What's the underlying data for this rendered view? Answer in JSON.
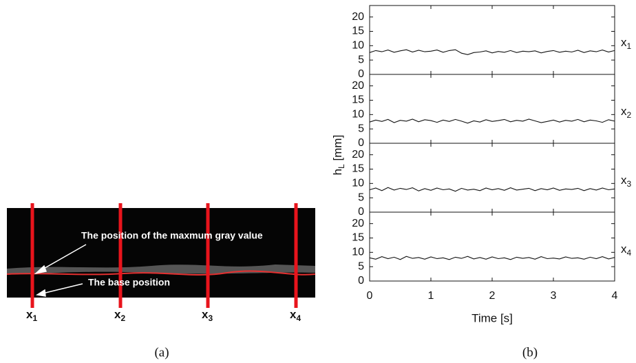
{
  "figure_a": {
    "annotations": [
      "The position of the maxmum gray value",
      "The base position"
    ],
    "line_labels": [
      {
        "text": "x",
        "subscript": "1"
      },
      {
        "text": "x",
        "subscript": "2"
      },
      {
        "text": "x",
        "subscript": "3"
      },
      {
        "text": "x",
        "subscript": "4"
      }
    ],
    "caption": "(a)"
  },
  "figure_b": {
    "caption": "(b)",
    "y_label": {
      "text": "h",
      "subscript": "L",
      "rest": " [mm]"
    },
    "x_label": "Time [s]"
  },
  "chart_data": [
    {
      "type": "line",
      "panel_label": {
        "text": "x",
        "subscript": "1"
      },
      "x": [
        0,
        0.1,
        0.2,
        0.3,
        0.4,
        0.5,
        0.6,
        0.7,
        0.8,
        0.9,
        1,
        1.1,
        1.2,
        1.3,
        1.4,
        1.5,
        1.6,
        1.7,
        1.8,
        1.9,
        2,
        2.1,
        2.2,
        2.3,
        2.4,
        2.5,
        2.6,
        2.7,
        2.8,
        2.9,
        3,
        3.1,
        3.2,
        3.3,
        3.4,
        3.5,
        3.6,
        3.7,
        3.8,
        3.9,
        4
      ],
      "series": [
        {
          "color": "#111111",
          "values": [
            7.6,
            8.3,
            7.9,
            8.5,
            7.7,
            8.2,
            8.6,
            7.8,
            8.4,
            7.9,
            8.1,
            8.5,
            7.7,
            8.3,
            8.6,
            7.4,
            6.9,
            7.6,
            7.8,
            8.2,
            7.5,
            8.0,
            7.7,
            8.3,
            7.6,
            8.1,
            7.9,
            8.2,
            7.5,
            8.0,
            8.3,
            7.7,
            8.1,
            7.8,
            8.4,
            7.6,
            8.2,
            7.9,
            8.5,
            7.8,
            8.3
          ]
        }
      ],
      "xlim": [
        0,
        4
      ],
      "xticks": [
        0,
        1,
        2,
        3,
        4
      ],
      "ylim": [
        0,
        24
      ],
      "yticks": [
        0,
        5,
        10,
        15,
        20
      ]
    },
    {
      "type": "line",
      "panel_label": {
        "text": "x",
        "subscript": "2"
      },
      "x": [
        0,
        0.1,
        0.2,
        0.3,
        0.4,
        0.5,
        0.6,
        0.7,
        0.8,
        0.9,
        1,
        1.1,
        1.2,
        1.3,
        1.4,
        1.5,
        1.6,
        1.7,
        1.8,
        1.9,
        2,
        2.1,
        2.2,
        2.3,
        2.4,
        2.5,
        2.6,
        2.7,
        2.8,
        2.9,
        3,
        3.1,
        3.2,
        3.3,
        3.4,
        3.5,
        3.6,
        3.7,
        3.8,
        3.9,
        4
      ],
      "series": [
        {
          "color": "#111111",
          "values": [
            7.4,
            8.1,
            7.6,
            8.3,
            7.2,
            8.0,
            7.7,
            8.4,
            7.5,
            8.2,
            7.9,
            7.3,
            8.1,
            7.6,
            8.3,
            7.7,
            7.0,
            7.8,
            7.4,
            8.2,
            7.6,
            7.9,
            8.3,
            7.5,
            8.0,
            7.7,
            8.4,
            7.8,
            7.2,
            7.6,
            8.1,
            7.4,
            8.0,
            7.7,
            8.3,
            7.5,
            8.1,
            7.8,
            7.3,
            8.2,
            7.7
          ]
        }
      ],
      "xlim": [
        0,
        4
      ],
      "xticks": [
        0,
        1,
        2,
        3,
        4
      ],
      "ylim": [
        0,
        24
      ],
      "yticks": [
        0,
        5,
        10,
        15,
        20
      ]
    },
    {
      "type": "line",
      "panel_label": {
        "text": "x",
        "subscript": "3"
      },
      "x": [
        0,
        0.1,
        0.2,
        0.3,
        0.4,
        0.5,
        0.6,
        0.7,
        0.8,
        0.9,
        1,
        1.1,
        1.2,
        1.3,
        1.4,
        1.5,
        1.6,
        1.7,
        1.8,
        1.9,
        2,
        2.1,
        2.2,
        2.3,
        2.4,
        2.5,
        2.6,
        2.7,
        2.8,
        2.9,
        3,
        3.1,
        3.2,
        3.3,
        3.4,
        3.5,
        3.6,
        3.7,
        3.8,
        3.9,
        4
      ],
      "series": [
        {
          "color": "#111111",
          "values": [
            7.8,
            8.4,
            7.5,
            8.6,
            7.7,
            8.3,
            7.9,
            8.5,
            7.4,
            8.2,
            7.6,
            8.4,
            7.8,
            8.1,
            7.3,
            8.3,
            7.7,
            8.0,
            7.5,
            8.4,
            7.8,
            8.2,
            7.6,
            8.5,
            7.7,
            8.0,
            8.3,
            7.5,
            8.2,
            7.8,
            8.4,
            7.6,
            8.1,
            7.9,
            8.3,
            7.5,
            8.2,
            7.7,
            8.4,
            7.8,
            8.1
          ]
        }
      ],
      "xlim": [
        0,
        4
      ],
      "xticks": [
        0,
        1,
        2,
        3,
        4
      ],
      "ylim": [
        0,
        24
      ],
      "yticks": [
        0,
        5,
        10,
        15,
        20
      ]
    },
    {
      "type": "line",
      "panel_label": {
        "text": "x",
        "subscript": "4"
      },
      "x": [
        0,
        0.1,
        0.2,
        0.3,
        0.4,
        0.5,
        0.6,
        0.7,
        0.8,
        0.9,
        1,
        1.1,
        1.2,
        1.3,
        1.4,
        1.5,
        1.6,
        1.7,
        1.8,
        1.9,
        2,
        2.1,
        2.2,
        2.3,
        2.4,
        2.5,
        2.6,
        2.7,
        2.8,
        2.9,
        3,
        3.1,
        3.2,
        3.3,
        3.4,
        3.5,
        3.6,
        3.7,
        3.8,
        3.9,
        4
      ],
      "series": [
        {
          "color": "#111111",
          "values": [
            8.1,
            7.6,
            8.5,
            7.8,
            8.3,
            7.5,
            8.6,
            7.9,
            8.2,
            7.6,
            8.4,
            7.8,
            8.1,
            7.5,
            8.3,
            7.9,
            8.6,
            7.7,
            8.2,
            7.6,
            8.4,
            7.8,
            8.1,
            7.5,
            8.3,
            7.9,
            8.2,
            7.6,
            8.5,
            7.8,
            8.0,
            7.7,
            8.4,
            7.9,
            8.1,
            7.6,
            8.3,
            7.8,
            8.5,
            7.7,
            8.2
          ]
        }
      ],
      "xlim": [
        0,
        4
      ],
      "xticks": [
        0,
        1,
        2,
        3,
        4
      ],
      "ylim": [
        0,
        24
      ],
      "yticks": [
        0,
        5,
        10,
        15,
        20
      ]
    }
  ]
}
